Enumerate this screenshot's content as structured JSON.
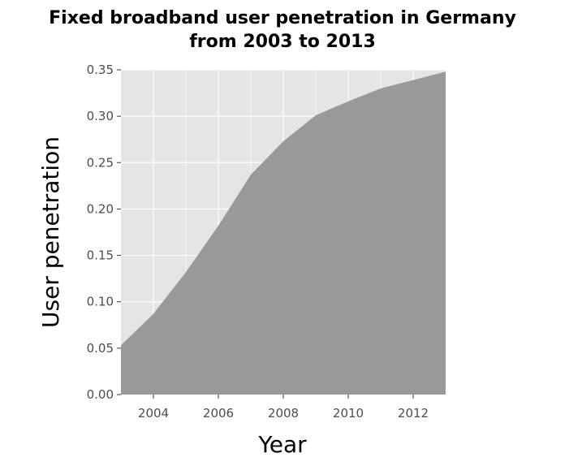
{
  "chart_data": {
    "type": "area",
    "title": "Fixed broadband user penetration in Germany from 2003 to 2013",
    "title_lines": [
      "Fixed broadband user penetration in Germany",
      "from 2003 to 2013"
    ],
    "xlabel": "Year",
    "ylabel": "User penetration",
    "x": [
      2003,
      2004,
      2005,
      2006,
      2007,
      2008,
      2009,
      2010,
      2011,
      2012,
      2013
    ],
    "values": [
      0.053,
      0.087,
      0.132,
      0.182,
      0.237,
      0.273,
      0.301,
      0.316,
      0.33,
      0.339,
      0.348
    ],
    "xlim": [
      2003,
      2013
    ],
    "ylim": [
      0,
      0.35
    ],
    "x_ticks": [
      2004,
      2006,
      2008,
      2010,
      2012
    ],
    "x_tick_labels": [
      "2004",
      "2006",
      "2008",
      "2010",
      "2012"
    ],
    "y_ticks": [
      0,
      0.05,
      0.1,
      0.15,
      0.2,
      0.25,
      0.3,
      0.35
    ],
    "y_tick_labels": [
      "0.00",
      "0.05",
      "0.10",
      "0.15",
      "0.20",
      "0.25",
      "0.30",
      "0.35"
    ],
    "grid": true,
    "colors": {
      "area_fill": "#999999",
      "panel_background": "#e5e5e5",
      "grid": "#ffffff",
      "tick_text": "#4d4d4d",
      "tick_mark": "#333333"
    }
  }
}
